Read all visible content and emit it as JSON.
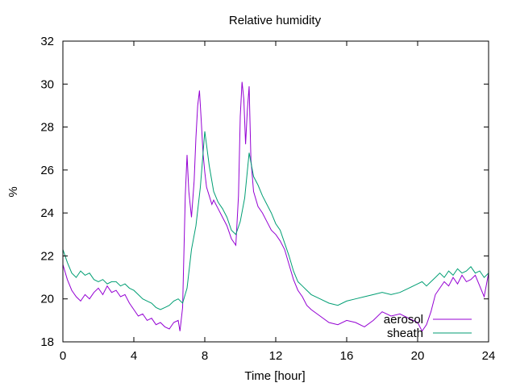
{
  "chart_data": {
    "type": "line",
    "title": "Relative humidity",
    "xlabel": "Time [hour]",
    "ylabel": "%",
    "xlim": [
      0,
      24
    ],
    "ylim": [
      18,
      32
    ],
    "xticks": [
      0,
      4,
      8,
      12,
      16,
      20,
      24
    ],
    "yticks": [
      18,
      20,
      22,
      24,
      26,
      28,
      30,
      32
    ],
    "grid": false,
    "legend_position": "bottom-right",
    "series": [
      {
        "name": "aerosol",
        "color": "#9400d3",
        "x": [
          0,
          0.25,
          0.5,
          0.75,
          1,
          1.25,
          1.5,
          1.75,
          2,
          2.25,
          2.5,
          2.75,
          3,
          3.25,
          3.5,
          3.75,
          4,
          4.25,
          4.5,
          4.75,
          5,
          5.25,
          5.5,
          5.75,
          6,
          6.25,
          6.5,
          6.6,
          6.75,
          6.9,
          7,
          7.1,
          7.25,
          7.4,
          7.5,
          7.6,
          7.7,
          7.8,
          7.9,
          8,
          8.1,
          8.25,
          8.4,
          8.5,
          8.75,
          9,
          9.25,
          9.5,
          9.75,
          9.9,
          10,
          10.1,
          10.2,
          10.3,
          10.4,
          10.5,
          10.6,
          10.75,
          11,
          11.25,
          11.5,
          11.75,
          12,
          12.25,
          12.5,
          12.75,
          13,
          13.25,
          13.5,
          13.75,
          14,
          14.5,
          15,
          15.5,
          16,
          16.5,
          17,
          17.5,
          18,
          18.5,
          19,
          19.5,
          20,
          20.25,
          20.5,
          20.75,
          21,
          21.25,
          21.5,
          21.75,
          22,
          22.25,
          22.5,
          22.75,
          23,
          23.25,
          23.5,
          23.75,
          24
        ],
        "y": [
          21.6,
          20.9,
          20.4,
          20.1,
          19.9,
          20.2,
          20.0,
          20.3,
          20.5,
          20.2,
          20.6,
          20.3,
          20.4,
          20.1,
          20.2,
          19.8,
          19.5,
          19.2,
          19.3,
          19.0,
          19.1,
          18.8,
          18.9,
          18.7,
          18.6,
          18.9,
          19.0,
          18.5,
          19.6,
          24.8,
          26.7,
          25.0,
          23.8,
          25.5,
          27.5,
          29.0,
          29.7,
          28.3,
          26.8,
          25.9,
          25.2,
          24.8,
          24.4,
          24.6,
          24.2,
          23.8,
          23.4,
          22.8,
          22.5,
          24.8,
          28.5,
          30.1,
          29.3,
          27.2,
          28.8,
          29.9,
          26.5,
          25.0,
          24.3,
          24.0,
          23.6,
          23.2,
          23.0,
          22.7,
          22.3,
          21.6,
          20.9,
          20.4,
          20.1,
          19.7,
          19.5,
          19.2,
          18.9,
          18.8,
          19.0,
          18.9,
          18.7,
          19.0,
          19.4,
          19.2,
          19.3,
          19.1,
          18.9,
          18.5,
          18.8,
          19.4,
          20.2,
          20.5,
          20.8,
          20.6,
          21.0,
          20.7,
          21.1,
          20.8,
          20.9,
          21.1,
          20.6,
          20.1,
          21.2
        ]
      },
      {
        "name": "sheath",
        "color": "#009e73",
        "x": [
          0,
          0.25,
          0.5,
          0.75,
          1,
          1.25,
          1.5,
          1.75,
          2,
          2.25,
          2.5,
          2.75,
          3,
          3.25,
          3.5,
          3.75,
          4,
          4.25,
          4.5,
          4.75,
          5,
          5.25,
          5.5,
          5.75,
          6,
          6.25,
          6.5,
          6.75,
          7,
          7.25,
          7.5,
          7.75,
          8,
          8.25,
          8.5,
          8.75,
          9,
          9.25,
          9.5,
          9.75,
          10,
          10.25,
          10.5,
          10.75,
          11,
          11.25,
          11.5,
          11.75,
          12,
          12.25,
          12.5,
          12.75,
          13,
          13.25,
          13.5,
          13.75,
          14,
          14.5,
          15,
          15.5,
          16,
          16.5,
          17,
          17.5,
          18,
          18.5,
          19,
          19.5,
          20,
          20.25,
          20.5,
          20.75,
          21,
          21.25,
          21.5,
          21.75,
          22,
          22.25,
          22.5,
          22.75,
          23,
          23.25,
          23.5,
          23.75,
          24
        ],
        "y": [
          22.3,
          21.7,
          21.2,
          21.0,
          21.3,
          21.1,
          21.2,
          20.9,
          20.8,
          20.9,
          20.7,
          20.8,
          20.8,
          20.6,
          20.7,
          20.5,
          20.4,
          20.2,
          20.0,
          19.9,
          19.8,
          19.6,
          19.5,
          19.6,
          19.7,
          19.9,
          20.0,
          19.8,
          20.5,
          22.3,
          23.4,
          25.2,
          27.8,
          26.2,
          25.0,
          24.5,
          24.2,
          23.8,
          23.2,
          23.0,
          23.6,
          24.7,
          26.8,
          25.7,
          25.3,
          24.8,
          24.4,
          24.0,
          23.5,
          23.2,
          22.6,
          22.0,
          21.3,
          20.8,
          20.6,
          20.4,
          20.2,
          20.0,
          19.8,
          19.7,
          19.9,
          20.0,
          20.1,
          20.2,
          20.3,
          20.2,
          20.3,
          20.5,
          20.7,
          20.8,
          20.6,
          20.8,
          21.0,
          21.2,
          21.0,
          21.3,
          21.1,
          21.4,
          21.2,
          21.3,
          21.5,
          21.2,
          21.3,
          21.0,
          21.2
        ]
      }
    ]
  }
}
